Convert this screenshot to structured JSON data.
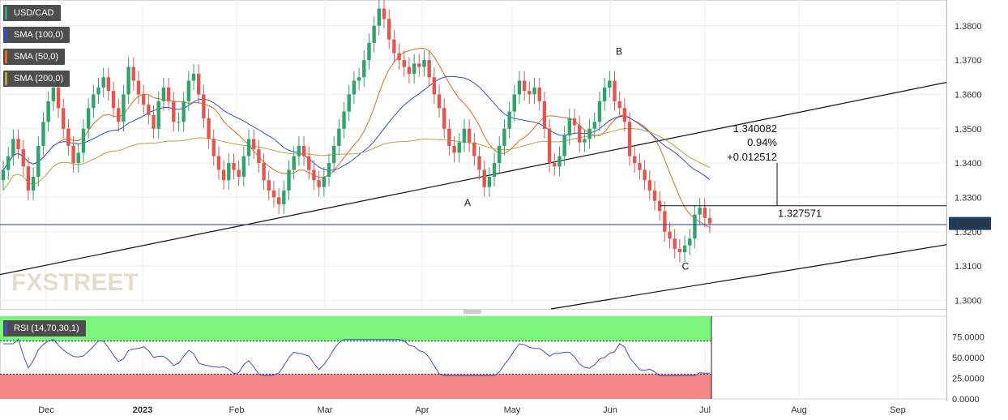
{
  "chart_data": [
    {
      "type": "candlestick",
      "symbol": "USD/CAD",
      "x_ticks": [
        "Dec",
        "2023",
        "Feb",
        "Mar",
        "Apr",
        "May",
        "Jun",
        "Jul",
        "Aug",
        "Sep"
      ],
      "ylim": [
        1.2975,
        1.3875
      ],
      "y_ticks": [
        "1.3800",
        "1.3700",
        "1.3600",
        "1.3500",
        "1.3400",
        "1.3300",
        "1.3200",
        "1.3100",
        "1.3000"
      ],
      "last_price": "1.322390",
      "indicators": [
        {
          "name": "SMA (100,0)",
          "color": "#2f4fd6"
        },
        {
          "name": "SMA (50,0)",
          "color": "#e06a1a"
        },
        {
          "name": "SMA (200,0)",
          "color": "#b5a642"
        }
      ],
      "closes": [
        1.338,
        1.342,
        1.347,
        1.344,
        1.339,
        1.332,
        1.336,
        1.345,
        1.352,
        1.358,
        1.362,
        1.356,
        1.35,
        1.345,
        1.34,
        1.343,
        1.35,
        1.356,
        1.36,
        1.362,
        1.365,
        1.361,
        1.356,
        1.352,
        1.36,
        1.368,
        1.364,
        1.36,
        1.357,
        1.354,
        1.35,
        1.358,
        1.362,
        1.358,
        1.352,
        1.352,
        1.358,
        1.364,
        1.366,
        1.36,
        1.353,
        1.347,
        1.342,
        1.338,
        1.335,
        1.34,
        1.338,
        1.336,
        1.342,
        1.347,
        1.344,
        1.34,
        1.335,
        1.332,
        1.33,
        1.328,
        1.332,
        1.338,
        1.342,
        1.345,
        1.342,
        1.338,
        1.335,
        1.333,
        1.336,
        1.34,
        1.345,
        1.35,
        1.355,
        1.36,
        1.364,
        1.365,
        1.37,
        1.375,
        1.38,
        1.385,
        1.382,
        1.376,
        1.372,
        1.37,
        1.368,
        1.366,
        1.369,
        1.368,
        1.37,
        1.365,
        1.36,
        1.356,
        1.35,
        1.345,
        1.343,
        1.346,
        1.35,
        1.346,
        1.342,
        1.338,
        1.333,
        1.336,
        1.34,
        1.345,
        1.35,
        1.355,
        1.36,
        1.364,
        1.361,
        1.36,
        1.362,
        1.358,
        1.35,
        1.34,
        1.339,
        1.342,
        1.348,
        1.353,
        1.351,
        1.346,
        1.347,
        1.35,
        1.352,
        1.358,
        1.362,
        1.364,
        1.358,
        1.356,
        1.352,
        1.342,
        1.34,
        1.338,
        1.335,
        1.332,
        1.329,
        1.326,
        1.32,
        1.318,
        1.315,
        1.314,
        1.316,
        1.318,
        1.325,
        1.327,
        1.324,
        1.3224
      ],
      "annotations": {
        "points": [
          "A",
          "B",
          "C"
        ],
        "value_readout": "1.340082",
        "percent_change": "0.94%",
        "abs_change": "+0.012512",
        "level": "1.327571"
      },
      "watermark": "FXSTREET"
    },
    {
      "type": "line",
      "indicator": "RSI (14,70,30,1)",
      "ylim": [
        0,
        100
      ],
      "y_ticks": [
        "75.0000",
        "50.0000",
        "25.0000",
        "0.0000"
      ],
      "overbought": 70,
      "oversold": 30
    }
  ],
  "colors": {
    "up": "#2fa36b",
    "down": "#e0574f",
    "sma100": "#2f4fd6",
    "sma50": "#e06a1a",
    "sma200": "#b5a642",
    "rsi_line": "#3c50d8",
    "overbought_zone": "#7bf57b",
    "oversold_zone": "#f48787",
    "price_line": "#1f3d8a",
    "price_badge": "#1f3d5e"
  }
}
